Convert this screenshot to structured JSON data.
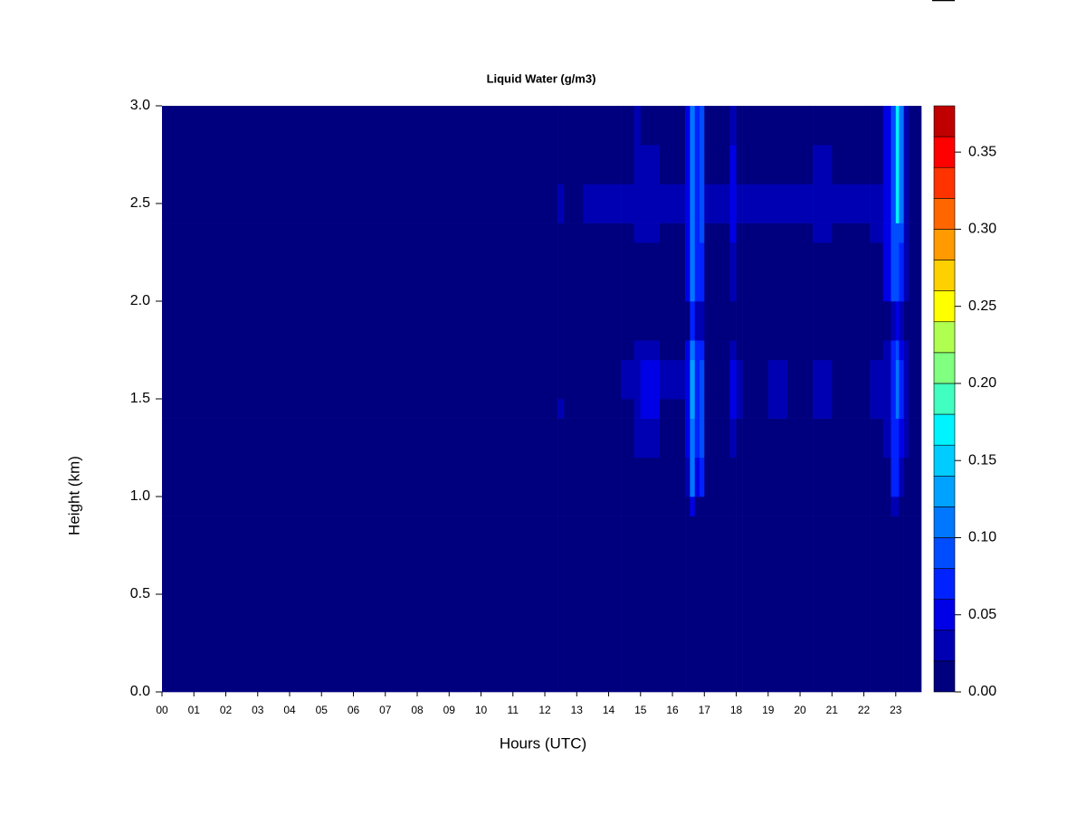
{
  "chart_data": {
    "type": "heatmap",
    "title": "Liquid Water (g/m3)",
    "x_label": "Hours (UTC)",
    "y_label": "Height (km)",
    "xlim": [
      0,
      23.8
    ],
    "ylim": [
      0,
      3
    ],
    "xticks": [
      {
        "value": 0,
        "label": "00"
      },
      {
        "value": 1,
        "label": "01"
      },
      {
        "value": 2,
        "label": "02"
      },
      {
        "value": 3,
        "label": "03"
      },
      {
        "value": 4,
        "label": "04"
      },
      {
        "value": 5,
        "label": "05"
      },
      {
        "value": 6,
        "label": "06"
      },
      {
        "value": 7,
        "label": "07"
      },
      {
        "value": 8,
        "label": "08"
      },
      {
        "value": 9,
        "label": "09"
      },
      10,
      11,
      12,
      13,
      14,
      15,
      16,
      17,
      18,
      19,
      20,
      21,
      22,
      23
    ],
    "yticks": [
      {
        "value": 0,
        "label": "0.0"
      },
      0.5,
      {
        "value": 1,
        "label": "1.0"
      },
      1.5,
      {
        "value": 2,
        "label": "2.0"
      },
      2.5,
      {
        "value": 3,
        "label": "3.0"
      }
    ],
    "x_bins": [
      0,
      12.4,
      12.6,
      13.2,
      13.6,
      14.4,
      14.8,
      15.0,
      15.6,
      16.4,
      16.55,
      16.7,
      16.85,
      17.0,
      17.8,
      18.0,
      18.2,
      19.0,
      19.6,
      20.4,
      21.0,
      22.2,
      22.6,
      22.85,
      23.0,
      23.1,
      23.25,
      23.4,
      23.8
    ],
    "y_bins": [
      0,
      0.9,
      1.0,
      1.2,
      1.4,
      1.5,
      1.7,
      1.8,
      2.0,
      2.3,
      2.4,
      2.6,
      2.8,
      3.0
    ],
    "z": [
      [
        0,
        0,
        0,
        0,
        0,
        0,
        0,
        0,
        0,
        0,
        0,
        0,
        0
      ],
      [
        0,
        0,
        0,
        0,
        0.02,
        0,
        0,
        0,
        0,
        0,
        0.02,
        0,
        0
      ],
      [
        0,
        0,
        0,
        0,
        0,
        0,
        0,
        0,
        0,
        0,
        0,
        0,
        0
      ],
      [
        0,
        0,
        0,
        0,
        0,
        0,
        0,
        0,
        0,
        0,
        0.02,
        0,
        0
      ],
      [
        0,
        0,
        0,
        0,
        0,
        0,
        0,
        0,
        0,
        0,
        0.02,
        0,
        0
      ],
      [
        0,
        0,
        0,
        0,
        0,
        0.02,
        0,
        0,
        0,
        0,
        0.03,
        0,
        0
      ],
      [
        0,
        0,
        0,
        0.02,
        0.02,
        0.02,
        0.02,
        0,
        0,
        0.02,
        0.03,
        0.02,
        0.02
      ],
      [
        0,
        0,
        0,
        0.02,
        0.04,
        0.04,
        0.02,
        0,
        0,
        0.02,
        0.03,
        0.02,
        0
      ],
      [
        0,
        0,
        0,
        0,
        0,
        0.02,
        0,
        0,
        0,
        0,
        0.03,
        0,
        0
      ],
      [
        0,
        0,
        0.02,
        0.04,
        0.05,
        0.05,
        0.04,
        0,
        0.04,
        0.04,
        0.04,
        0.04,
        0.04
      ],
      [
        0,
        0.04,
        0.1,
        0.1,
        0.12,
        0.12,
        0.1,
        0.06,
        0.1,
        0.1,
        0.1,
        0.1,
        0.1
      ],
      [
        0,
        0,
        0.04,
        0.06,
        0.06,
        0.06,
        0.06,
        0.02,
        0.06,
        0.06,
        0.06,
        0.06,
        0.06
      ],
      [
        0,
        0,
        0.06,
        0.08,
        0.08,
        0.08,
        0.06,
        0.02,
        0.06,
        0.08,
        0.08,
        0.08,
        0.08
      ],
      [
        0,
        0,
        0,
        0,
        0,
        0,
        0,
        0,
        0,
        0,
        0.02,
        0,
        0
      ],
      [
        0,
        0,
        0,
        0.02,
        0.04,
        0.04,
        0.02,
        0,
        0.02,
        0.04,
        0.04,
        0.04,
        0.02
      ],
      [
        0,
        0,
        0,
        0,
        0.02,
        0.02,
        0,
        0,
        0,
        0,
        0.02,
        0,
        0
      ],
      [
        0,
        0,
        0,
        0,
        0,
        0,
        0,
        0,
        0,
        0,
        0.03,
        0,
        0
      ],
      [
        0,
        0,
        0,
        0,
        0.02,
        0.02,
        0,
        0,
        0,
        0,
        0.03,
        0,
        0
      ],
      [
        0,
        0,
        0,
        0,
        0,
        0,
        0,
        0,
        0,
        0,
        0.02,
        0,
        0
      ],
      [
        0,
        0,
        0,
        0,
        0.02,
        0.02,
        0,
        0,
        0,
        0.02,
        0.02,
        0.02,
        0
      ],
      [
        0,
        0,
        0,
        0,
        0,
        0,
        0,
        0,
        0,
        0,
        0.02,
        0,
        0
      ],
      [
        0,
        0,
        0,
        0,
        0.02,
        0.02,
        0,
        0,
        0,
        0.02,
        0.02,
        0,
        0
      ],
      [
        0,
        0,
        0,
        0.03,
        0.03,
        0.03,
        0.02,
        0,
        0.04,
        0.04,
        0.04,
        0.04,
        0.04
      ],
      [
        0,
        0.02,
        0.06,
        0.06,
        0.06,
        0.06,
        0.06,
        0.02,
        0.08,
        0.08,
        0.08,
        0.08,
        0.08
      ],
      [
        0,
        0.02,
        0.06,
        0.06,
        0.1,
        0.1,
        0.08,
        0.04,
        0.08,
        0.08,
        0.16,
        0.16,
        0.16
      ],
      [
        0,
        0,
        0.02,
        0.04,
        0.06,
        0.06,
        0.04,
        0.02,
        0.06,
        0.08,
        0.1,
        0.1,
        0.1
      ],
      [
        0,
        0,
        0,
        0.02,
        0.03,
        0.03,
        0.02,
        0,
        0.02,
        0.03,
        0.03,
        0.03,
        0.03
      ],
      [
        0,
        0,
        0,
        0,
        0,
        0,
        0,
        0,
        0,
        0,
        0,
        0,
        0
      ]
    ],
    "levels": [
      0,
      0.02,
      0.04,
      0.06,
      0.08,
      0.1,
      0.12,
      0.14,
      0.16,
      0.18,
      0.2,
      0.22,
      0.24,
      0.26,
      0.28,
      0.3,
      0.32,
      0.34,
      0.36,
      0.38
    ],
    "colors": [
      "#00007f",
      "#0000b3",
      "#0000e6",
      "#0022ff",
      "#004cff",
      "#0077ff",
      "#00a2ff",
      "#00ccff",
      "#00f4ff",
      "#40ffc0",
      "#80ff80",
      "#b0ff50",
      "#ffff00",
      "#ffd000",
      "#ff9a00",
      "#ff6600",
      "#ff3300",
      "#ff0000",
      "#c00000",
      "#800000"
    ],
    "colorbar_ticks": [
      {
        "value": 0,
        "label": "0.00"
      },
      0.05,
      {
        "value": 0.1,
        "label": "0.10"
      },
      0.15,
      {
        "value": 0.2,
        "label": "0.20"
      },
      0.25,
      {
        "value": 0.3,
        "label": "0.30"
      },
      0.35
    ]
  }
}
